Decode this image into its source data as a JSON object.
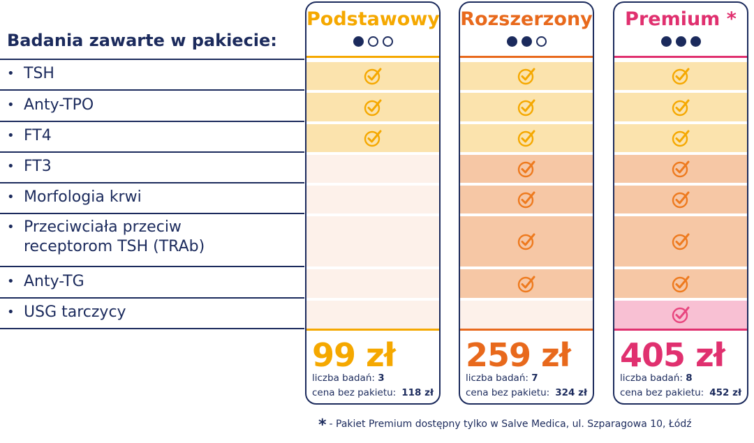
{
  "heading": "Badania zawarte w pakiecie:",
  "bullet": "•",
  "tests": [
    {
      "label": "TSH",
      "included": [
        true,
        true,
        true
      ]
    },
    {
      "label": "Anty-TPO",
      "included": [
        true,
        true,
        true
      ]
    },
    {
      "label": "FT4",
      "included": [
        true,
        true,
        true
      ]
    },
    {
      "label": "FT3",
      "included": [
        false,
        true,
        true
      ]
    },
    {
      "label": "Morfologia krwi",
      "included": [
        false,
        true,
        true
      ]
    },
    {
      "label": "Przeciwciała przeciw receptorom TSH (TRAb)",
      "included": [
        false,
        true,
        true
      ]
    },
    {
      "label": "Anty-TG",
      "included": [
        false,
        true,
        true
      ]
    },
    {
      "label": "USG tarczycy",
      "included": [
        false,
        false,
        true
      ]
    }
  ],
  "packages": [
    {
      "title": "Podstawowy",
      "level": 1,
      "price": "99 zł",
      "count_label": "liczba badań:",
      "count": "3",
      "nopkg_label": "cena bez pakietu:",
      "nopkg_price": "118 zł",
      "color": "#f5a800",
      "bg_tier1": "#fbe3ad",
      "bg_tier2": "#fdf1ea",
      "bg_tier3": "#fdf1ea",
      "check_tier1": "#f5a800"
    },
    {
      "title": "Rozszerzony",
      "level": 2,
      "price": "259 zł",
      "count_label": "liczba badań:",
      "count": "7",
      "nopkg_label": "cena bez pakietu:",
      "nopkg_price": "324 zł",
      "color": "#e8691c",
      "bg_tier1": "#fbe3ad",
      "bg_tier2": "#f6c7a5",
      "bg_tier3": "#fdf1ea",
      "check_tier1": "#f5a800",
      "check_tier2": "#ee7a1e"
    },
    {
      "title": "Premium *",
      "level": 3,
      "price": "405 zł",
      "count_label": "liczba badań:",
      "count": "8",
      "nopkg_label": "cena bez pakietu:",
      "nopkg_price": "452 zł",
      "color": "#e0306f",
      "bg_tier1": "#fbe3ad",
      "bg_tier2": "#f6c7a5",
      "bg_tier3": "#f8c0d3",
      "check_tier1": "#f5a800",
      "check_tier2": "#ee7a1e",
      "check_tier3": "#e8457e"
    }
  ],
  "footnote": {
    "star": "*",
    "text": "- Pakiet Premium dostępny tylko w Salve Medica, ul. Szparagowa 10, Łódź"
  }
}
